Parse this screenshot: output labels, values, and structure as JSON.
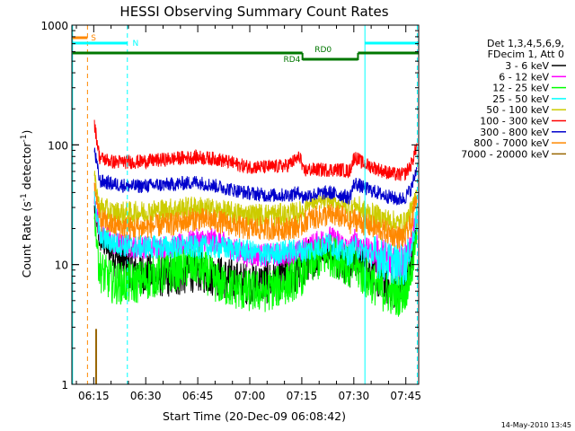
{
  "chart_data": {
    "type": "line",
    "title": "HESSI Observing Summary Count Rates",
    "xlabel": "Start Time (20-Dec-09 06:08:42)",
    "ylabel_main": "Count Rate (s",
    "ylabel_sup1": "-1",
    "ylabel_mid": " detector",
    "ylabel_sup2": "-1",
    "ylabel_end": ")",
    "y_scale": "log",
    "ylim": [
      1,
      1000
    ],
    "xlim_minutes": [
      0,
      100
    ],
    "x_ticks": [
      {
        "m": 6.3,
        "label": "06:15"
      },
      {
        "m": 21.3,
        "label": "06:30"
      },
      {
        "m": 36.3,
        "label": "06:45"
      },
      {
        "m": 51.3,
        "label": "07:00"
      },
      {
        "m": 66.3,
        "label": "07:15"
      },
      {
        "m": 81.3,
        "label": "07:30"
      },
      {
        "m": 96.3,
        "label": "07:45"
      }
    ],
    "y_ticks": [
      {
        "v": 1,
        "label": "1"
      },
      {
        "v": 10,
        "label": "10"
      },
      {
        "v": 100,
        "label": "100"
      },
      {
        "v": 1000,
        "label": "1000"
      }
    ],
    "legend": {
      "position": "right",
      "header": [
        "Det 1,3,4,5,6,9,",
        "FDecim 1, Att 0"
      ]
    },
    "series": [
      {
        "name": "3 - 6 keV",
        "color": "#000000",
        "points": [
          [
            6.5,
            30
          ],
          [
            8,
            16
          ],
          [
            12,
            12
          ],
          [
            18,
            9
          ],
          [
            24,
            8
          ],
          [
            30,
            8
          ],
          [
            36,
            9
          ],
          [
            42,
            8
          ],
          [
            50,
            7
          ],
          [
            56,
            7
          ],
          [
            62,
            8
          ],
          [
            66,
            9
          ],
          [
            68,
            11
          ],
          [
            74,
            13
          ],
          [
            78,
            11
          ],
          [
            80,
            9
          ],
          [
            81.5,
            12
          ],
          [
            84,
            10
          ],
          [
            90,
            7
          ],
          [
            94,
            6
          ],
          [
            96,
            7
          ],
          [
            98,
            11
          ],
          [
            99.5,
            22
          ]
        ]
      },
      {
        "name": "6 - 12 keV",
        "color": "#ff00ff",
        "points": [
          [
            6.5,
            35
          ],
          [
            8,
            19
          ],
          [
            12,
            15
          ],
          [
            18,
            14
          ],
          [
            24,
            14
          ],
          [
            30,
            14
          ],
          [
            36,
            16
          ],
          [
            42,
            16
          ],
          [
            50,
            12
          ],
          [
            56,
            12
          ],
          [
            62,
            12
          ],
          [
            66,
            13
          ],
          [
            68,
            14
          ],
          [
            74,
            17
          ],
          [
            78,
            15
          ],
          [
            80,
            13
          ],
          [
            81.5,
            16
          ],
          [
            84,
            14
          ],
          [
            90,
            11
          ],
          [
            94,
            11
          ],
          [
            96,
            11
          ],
          [
            98,
            15
          ],
          [
            99.5,
            25
          ]
        ]
      },
      {
        "name": "12 - 25 keV",
        "color": "#00ff00",
        "points": [
          [
            6.5,
            25
          ],
          [
            8,
            9
          ],
          [
            12,
            7
          ],
          [
            18,
            7
          ],
          [
            24,
            8
          ],
          [
            30,
            9
          ],
          [
            36,
            10
          ],
          [
            42,
            7
          ],
          [
            50,
            6
          ],
          [
            56,
            6
          ],
          [
            62,
            7
          ],
          [
            66,
            8
          ],
          [
            68,
            10
          ],
          [
            74,
            12
          ],
          [
            78,
            11
          ],
          [
            80,
            9
          ],
          [
            81.5,
            10
          ],
          [
            84,
            8
          ],
          [
            90,
            6
          ],
          [
            94,
            5.5
          ],
          [
            96,
            6
          ],
          [
            98,
            9
          ],
          [
            99.5,
            18
          ]
        ]
      },
      {
        "name": "25 - 50 keV",
        "color": "#00ffff",
        "points": [
          [
            6.5,
            38
          ],
          [
            8,
            17
          ],
          [
            12,
            15
          ],
          [
            18,
            14
          ],
          [
            24,
            14
          ],
          [
            30,
            14
          ],
          [
            36,
            14
          ],
          [
            42,
            14
          ],
          [
            50,
            13
          ],
          [
            56,
            12
          ],
          [
            62,
            13
          ],
          [
            66,
            13
          ],
          [
            68,
            13
          ],
          [
            74,
            15
          ],
          [
            78,
            13
          ],
          [
            80,
            12
          ],
          [
            81.5,
            14
          ],
          [
            84,
            13
          ],
          [
            90,
            11
          ],
          [
            94,
            10
          ],
          [
            96,
            10
          ],
          [
            98,
            14
          ],
          [
            99.5,
            28
          ]
        ]
      },
      {
        "name": "50 - 100 keV",
        "color": "#cccc00",
        "points": [
          [
            6.5,
            55
          ],
          [
            8,
            30
          ],
          [
            12,
            27
          ],
          [
            18,
            27
          ],
          [
            24,
            28
          ],
          [
            30,
            29
          ],
          [
            36,
            30
          ],
          [
            42,
            28
          ],
          [
            50,
            26
          ],
          [
            56,
            26
          ],
          [
            62,
            26
          ],
          [
            66,
            27
          ],
          [
            68,
            32
          ],
          [
            74,
            34
          ],
          [
            78,
            32
          ],
          [
            80,
            29
          ],
          [
            81.5,
            32
          ],
          [
            84,
            28
          ],
          [
            90,
            24
          ],
          [
            94,
            22
          ],
          [
            96,
            22
          ],
          [
            98,
            28
          ],
          [
            99.5,
            45
          ]
        ]
      },
      {
        "name": "100 - 300 keV",
        "color": "#ff0000",
        "points": [
          [
            6.5,
            150
          ],
          [
            8,
            78
          ],
          [
            12,
            72
          ],
          [
            18,
            72
          ],
          [
            24,
            74
          ],
          [
            30,
            77
          ],
          [
            36,
            79
          ],
          [
            42,
            76
          ],
          [
            50,
            66
          ],
          [
            56,
            65
          ],
          [
            62,
            67
          ],
          [
            66,
            80
          ],
          [
            66.5,
            60
          ],
          [
            68,
            62
          ],
          [
            74,
            62
          ],
          [
            78,
            62
          ],
          [
            80,
            60
          ],
          [
            81.5,
            80
          ],
          [
            84,
            70
          ],
          [
            90,
            60
          ],
          [
            94,
            56
          ],
          [
            96,
            57
          ],
          [
            98,
            70
          ],
          [
            99.5,
            100
          ]
        ]
      },
      {
        "name": "300 - 800 keV",
        "color": "#0000cc",
        "points": [
          [
            6.5,
            90
          ],
          [
            8,
            50
          ],
          [
            12,
            47
          ],
          [
            18,
            45
          ],
          [
            24,
            46
          ],
          [
            30,
            47
          ],
          [
            36,
            49
          ],
          [
            42,
            45
          ],
          [
            50,
            40
          ],
          [
            56,
            38
          ],
          [
            62,
            38
          ],
          [
            66,
            40
          ],
          [
            66.5,
            36
          ],
          [
            68,
            38
          ],
          [
            74,
            40
          ],
          [
            78,
            38
          ],
          [
            80,
            36
          ],
          [
            81.5,
            48
          ],
          [
            84,
            44
          ],
          [
            90,
            38
          ],
          [
            94,
            35
          ],
          [
            96,
            36
          ],
          [
            98,
            44
          ],
          [
            99.5,
            65
          ]
        ]
      },
      {
        "name": "800 - 7000 keV",
        "color": "#ff8800",
        "points": [
          [
            6.5,
            48
          ],
          [
            8,
            24
          ],
          [
            12,
            21
          ],
          [
            18,
            20
          ],
          [
            24,
            21
          ],
          [
            30,
            22
          ],
          [
            36,
            24
          ],
          [
            42,
            23
          ],
          [
            50,
            20
          ],
          [
            56,
            20
          ],
          [
            62,
            20
          ],
          [
            66,
            21
          ],
          [
            68,
            24
          ],
          [
            74,
            26
          ],
          [
            78,
            25
          ],
          [
            80,
            22
          ],
          [
            81.5,
            24
          ],
          [
            84,
            22
          ],
          [
            90,
            19
          ],
          [
            94,
            17
          ],
          [
            96,
            17
          ],
          [
            98,
            22
          ],
          [
            99.5,
            38
          ]
        ]
      },
      {
        "name": "7000 - 20000 keV",
        "color": "#996600",
        "points": []
      }
    ],
    "annotations": [
      {
        "text": "S",
        "color": "#ff8800"
      },
      {
        "text": "N",
        "color": "#00ffff"
      },
      {
        "text": "RD0",
        "color": "#007700"
      },
      {
        "text": "RD4",
        "color": "#007700"
      }
    ],
    "flag_bars": {
      "saa": {
        "color": "#ff8800",
        "start": 0.2,
        "end": 4.5,
        "level": 3
      },
      "night": [
        {
          "color": "#00ffff",
          "start": 0.2,
          "end": 16,
          "level": 2
        },
        {
          "color": "#00ffff",
          "start": 84.5,
          "end": 100,
          "level": 2
        }
      ],
      "rd": [
        {
          "color": "#007700",
          "start": 0.2,
          "end": 66.5,
          "level": 1
        },
        {
          "color": "#007700",
          "start": 66.5,
          "end": 82.5,
          "level": 0
        },
        {
          "color": "#007700",
          "start": 82.5,
          "end": 100,
          "level": 1
        }
      ]
    },
    "vlines": [
      {
        "m": 0.2,
        "color": "#00ffff",
        "dash": false
      },
      {
        "m": 4.5,
        "color": "#ff8800",
        "dash": true
      },
      {
        "m": 16,
        "color": "#00ffff",
        "dash": true
      },
      {
        "m": 84.5,
        "color": "#00ffff",
        "dash": false
      },
      {
        "m": 99.6,
        "color": "#00ffff",
        "dash": true
      }
    ],
    "spike": {
      "m": 7,
      "value": 2.9,
      "color": "#996600"
    }
  },
  "footer": {
    "stamp": "14-May-2010 13:45"
  }
}
